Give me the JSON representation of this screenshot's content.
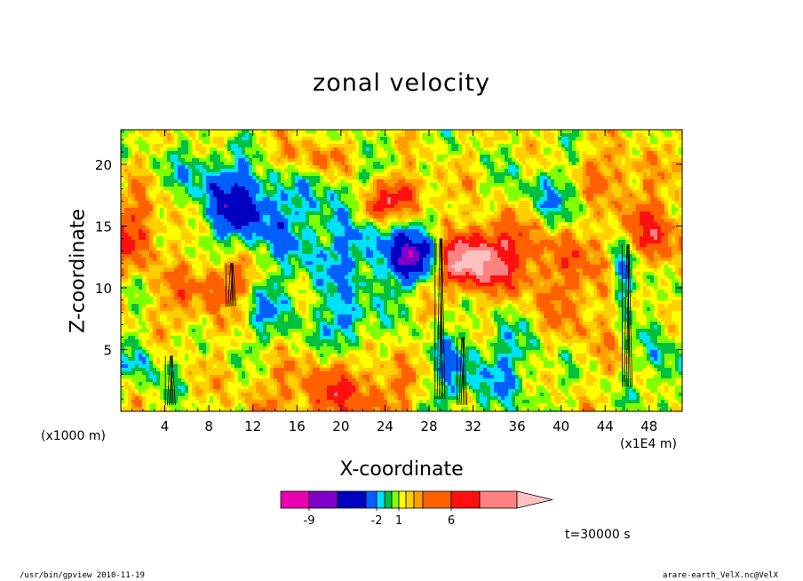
{
  "chart_data": {
    "type": "heatmap",
    "title": "zonal velocity",
    "xlabel": "X-coordinate",
    "ylabel": "Z-coordinate",
    "x_unit_left": "(x1000 m)",
    "x_unit_right": "(x1E4 m)",
    "xlim": [
      0,
      51
    ],
    "ylim": [
      0,
      22.8
    ],
    "x_ticks": [
      4,
      8,
      12,
      16,
      20,
      24,
      28,
      32,
      36,
      40,
      44,
      48
    ],
    "y_ticks": [
      5,
      10,
      15,
      20
    ],
    "x_tick_labels": [
      "4",
      "8",
      "12",
      "16",
      "20",
      "24",
      "28",
      "32",
      "36",
      "40",
      "44",
      "48"
    ],
    "y_tick_labels": [
      "5",
      "10",
      "15",
      "20"
    ],
    "colorbar": {
      "levels": [
        -11,
        -9,
        -7,
        -4,
        -2,
        -1,
        0,
        1,
        2,
        3,
        4,
        6,
        8,
        10
      ],
      "colors": [
        "#e800b0",
        "#8000c8",
        "#0000c0",
        "#0060ff",
        "#00e0ff",
        "#00c040",
        "#80ff00",
        "#ffff00",
        "#ffd000",
        "#ffa000",
        "#ff6000",
        "#ff1010",
        "#ff8080",
        "#ffc0c0"
      ],
      "tick_values": [
        -9,
        -2,
        1,
        6
      ],
      "tick_labels": [
        "-9",
        "-2",
        "1",
        "6"
      ],
      "extends_right": true
    },
    "features": [
      {
        "x": 27.5,
        "z": 12.5,
        "u": -9.5,
        "sx": 2.3,
        "sz": 1.5
      },
      {
        "x": 30.5,
        "z": 12.0,
        "u": 9.5,
        "sx": 2.0,
        "sz": 1.4
      },
      {
        "x": 34.0,
        "z": 12.8,
        "u": 5.5,
        "sx": 3.5,
        "sz": 2.0
      },
      {
        "x": 11.0,
        "z": 16.5,
        "u": -6.5,
        "sx": 2.5,
        "sz": 2.0
      },
      {
        "x": 20.0,
        "z": 14.0,
        "u": -3.5,
        "sx": 4.5,
        "sz": 4.0
      },
      {
        "x": 45.8,
        "z": 11.5,
        "u": -7.0,
        "sx": 0.8,
        "sz": 2.5
      },
      {
        "x": 47.5,
        "z": 14.5,
        "u": 4.5,
        "sx": 3.0,
        "sz": 2.0
      },
      {
        "x": 9.5,
        "z": 10.5,
        "u": 4.0,
        "sx": 2.0,
        "sz": 1.3
      },
      {
        "x": 1.0,
        "z": 14.5,
        "u": 4.5,
        "sx": 2.0,
        "sz": 2.0
      },
      {
        "x": 20.0,
        "z": 1.5,
        "u": 4.0,
        "sx": 5.0,
        "sz": 1.8
      },
      {
        "x": 35.0,
        "z": 3.5,
        "u": -3.0,
        "sx": 2.5,
        "sz": 2.5
      },
      {
        "x": 22.5,
        "z": 16.2,
        "u": 5.0,
        "sx": 1.2,
        "sz": 1.0
      },
      {
        "x": 25.5,
        "z": 17.5,
        "u": 5.5,
        "sx": 2.0,
        "sz": 1.2
      },
      {
        "x": 40.0,
        "z": 17.5,
        "u": -3.0,
        "sx": 3.0,
        "sz": 2.0
      },
      {
        "x": 2.0,
        "z": 4.0,
        "u": -2.5,
        "sx": 1.8,
        "sz": 1.6
      },
      {
        "x": 13.5,
        "z": 8.0,
        "u": -2.5,
        "sx": 1.6,
        "sz": 2.0
      },
      {
        "x": 30.0,
        "z": 2.5,
        "u": -3.5,
        "sx": 1.5,
        "sz": 2.5
      },
      {
        "x": 44.0,
        "z": 19.0,
        "u": 3.5,
        "sx": 2.5,
        "sz": 1.5
      },
      {
        "x": 41.5,
        "z": 9.5,
        "u": 2.5,
        "sx": 3.0,
        "sz": 3.0
      },
      {
        "x": 20.5,
        "z": 7.0,
        "u": -4.0,
        "sx": 1.2,
        "sz": 1.5
      },
      {
        "x": 8.0,
        "z": 19.5,
        "u": -2.5,
        "sx": 2.5,
        "sz": 1.5
      },
      {
        "x": 17.5,
        "z": 20.5,
        "u": 3.0,
        "sx": 3.0,
        "sz": 1.0
      },
      {
        "x": 49.5,
        "z": 3.5,
        "u": -2.5,
        "sx": 1.5,
        "sz": 2.5
      },
      {
        "x": 5.5,
        "z": 8.5,
        "u": 2.0,
        "sx": 2.0,
        "sz": 2.0
      }
    ]
  },
  "labels": {
    "time": "t=30000 s",
    "footer_left": "/usr/bin/gpview  2010-11-19",
    "footer_right": "arare-earth_VelX.nc@VelX"
  }
}
